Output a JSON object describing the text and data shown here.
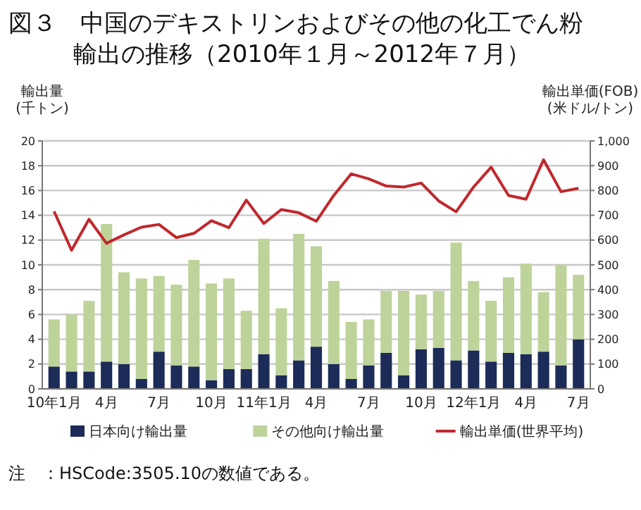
{
  "chart_data": {
    "type": "bar",
    "title": "図３　中国のデキストリンおよびその他の化工でん粉輸出の推移（2010年１月～2012年７月）",
    "ylabel": "輸出量\n(千トン)",
    "y2label": "輸出単価(FOB)\n(米ドル/トン)",
    "categories": [
      "10年1月",
      null,
      null,
      "4月",
      null,
      null,
      "7月",
      null,
      null,
      "10月",
      null,
      null,
      "11年1月",
      null,
      null,
      "4月",
      null,
      null,
      "7月",
      null,
      null,
      "10月",
      null,
      null,
      "12年1月",
      null,
      null,
      "4月",
      null,
      null,
      "7月"
    ],
    "stacked": true,
    "series": [
      {
        "name": "日本向け輸出量",
        "color": "#1c2b57",
        "values": [
          1.8,
          1.4,
          1.4,
          2.2,
          2.0,
          0.8,
          3.0,
          1.9,
          1.8,
          0.7,
          1.6,
          1.6,
          2.8,
          1.1,
          2.3,
          3.4,
          2.0,
          0.8,
          1.9,
          2.9,
          1.1,
          3.2,
          3.3,
          2.3,
          3.1,
          2.2,
          2.9,
          2.8,
          3.0,
          1.9,
          4.0
        ]
      },
      {
        "name": "その他向け輸出量",
        "color": "#bdd39a",
        "values": [
          3.8,
          4.6,
          5.7,
          11.1,
          7.4,
          8.1,
          6.1,
          6.5,
          8.6,
          7.8,
          7.3,
          4.7,
          9.3,
          5.4,
          10.2,
          8.1,
          6.7,
          4.6,
          3.7,
          5.0,
          6.8,
          4.4,
          4.6,
          9.5,
          5.6,
          4.9,
          6.1,
          7.3,
          4.8,
          8.1,
          5.2
        ]
      },
      {
        "name": "輸出単価(世界平均)",
        "type": "line",
        "axis": "y2",
        "color": "#c0282d",
        "values": [
          716,
          559,
          684,
          587,
          621,
          652,
          663,
          610,
          627,
          678,
          650,
          761,
          667,
          723,
          710,
          676,
          780,
          867,
          847,
          818,
          814,
          830,
          758,
          714,
          814,
          894,
          780,
          765,
          924,
          795,
          809
        ]
      }
    ],
    "ylim": [
      0,
      20
    ],
    "yticks": [
      0,
      2,
      4,
      6,
      8,
      10,
      12,
      14,
      16,
      18,
      20
    ],
    "y2lim": [
      0,
      1000
    ],
    "y2ticks": [
      0,
      100,
      200,
      300,
      400,
      500,
      600,
      700,
      800,
      900,
      {
        "value": 1000,
        "label": "1,000"
      }
    ],
    "grid": "y",
    "legend": "bottom",
    "annotations": [
      "注　：HSCode:3505.10の数値である。"
    ]
  }
}
